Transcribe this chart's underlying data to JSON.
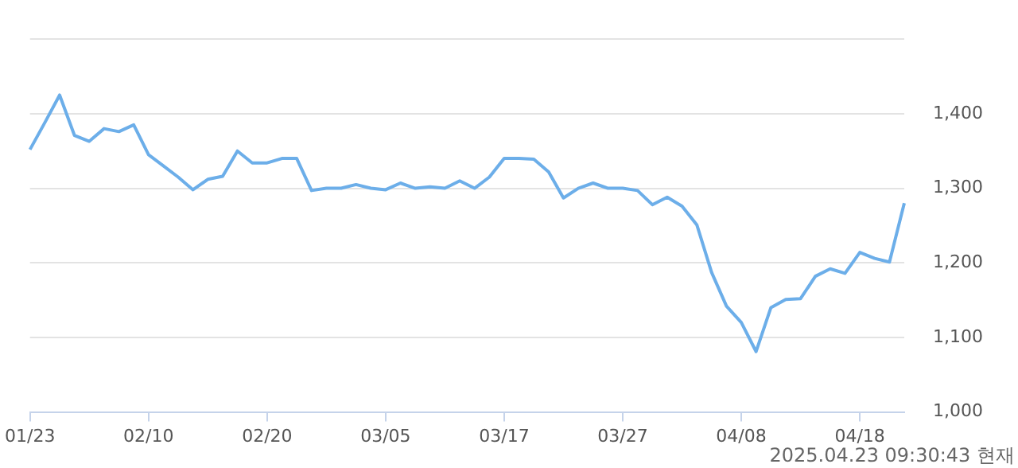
{
  "chart_data": {
    "type": "line",
    "categories": [
      "01/23",
      null,
      null,
      null,
      null,
      null,
      null,
      null,
      "02/10",
      null,
      null,
      null,
      null,
      null,
      null,
      null,
      "02/20",
      null,
      null,
      null,
      null,
      null,
      null,
      null,
      "03/05",
      null,
      null,
      null,
      null,
      null,
      null,
      null,
      "03/17",
      null,
      null,
      null,
      null,
      null,
      null,
      null,
      "03/27",
      null,
      null,
      null,
      null,
      null,
      null,
      null,
      "04/08",
      null,
      null,
      null,
      null,
      null,
      null,
      null,
      "04/18",
      null,
      null,
      null
    ],
    "series": [
      {
        "color": "#6caee9",
        "values": [
          1352,
          1388,
          1425,
          1371,
          1363,
          1380,
          1376,
          1385,
          1345,
          1330,
          1315,
          1298,
          1312,
          1316,
          1350,
          1334,
          1334,
          1340,
          1340,
          1297,
          1300,
          1300,
          1305,
          1300,
          1298,
          1307,
          1300,
          1302,
          1300,
          1310,
          1300,
          1315,
          1340,
          1340,
          1339,
          1322,
          1287,
          1300,
          1307,
          1300,
          1300,
          1297,
          1278,
          1288,
          1276,
          1251,
          1187,
          1142,
          1120,
          1081,
          1140,
          1151,
          1152,
          1182,
          1192,
          1186,
          1214,
          1206,
          1201,
          1280
        ]
      }
    ],
    "ylim": [
      1000,
      1500
    ],
    "yticks": [
      {
        "value": 1000,
        "label": "1,000"
      },
      {
        "value": 1100,
        "label": "1,100"
      },
      {
        "value": 1200,
        "label": "1,200"
      },
      {
        "value": 1300,
        "label": "1,300"
      },
      {
        "value": 1400,
        "label": "1,400"
      },
      {
        "value": 1500,
        "label": null
      }
    ],
    "grid": "y",
    "legend": false,
    "marker": "none",
    "line_style": "solid",
    "annotations": [
      "2025.04.23 09:30:43 현재"
    ]
  }
}
